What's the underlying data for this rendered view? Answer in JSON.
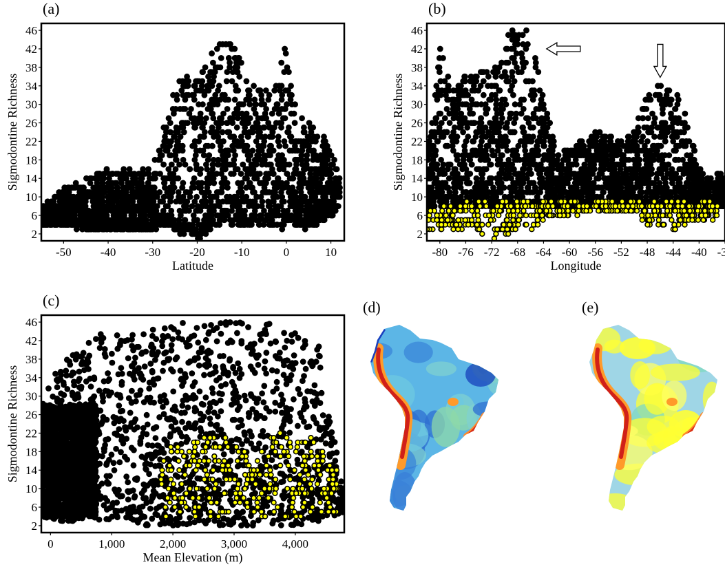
{
  "panel_labels": [
    "(a)",
    "(b)",
    "(c)",
    "(d)",
    "(e)"
  ],
  "colors": {
    "point": "#000000",
    "highlight_fill": "#ffff00",
    "arrow_fill": "#ffffff"
  },
  "chart_data": [
    {
      "id": "a",
      "type": "scatter",
      "xlabel": "Latitude",
      "ylabel": "Sigmodontine Richness",
      "xlim": [
        -55,
        13
      ],
      "ylim": [
        0.5,
        47.5
      ],
      "xticks": [
        -50,
        -40,
        -30,
        -20,
        -10,
        0,
        10
      ],
      "yticks": [
        2,
        6,
        10,
        14,
        18,
        22,
        26,
        30,
        34,
        38,
        42,
        46
      ],
      "grid": false,
      "series": [
        {
          "style": "black",
          "envelope": [
            [
              -55,
              4,
              8
            ],
            [
              -50,
              4,
              12
            ],
            [
              -45,
              3,
              14
            ],
            [
              -40,
              3,
              16
            ],
            [
              -35,
              3,
              16
            ],
            [
              -30,
              3,
              16
            ],
            [
              -27,
              4,
              28
            ],
            [
              -24,
              2,
              36
            ],
            [
              -20,
              1,
              36
            ],
            [
              -17,
              3,
              40
            ],
            [
              -15,
              4,
              46
            ],
            [
              -13,
              4,
              46
            ],
            [
              -11,
              4,
              42
            ],
            [
              -9,
              4,
              36
            ],
            [
              -6,
              4,
              34
            ],
            [
              -3,
              4,
              32
            ],
            [
              -1,
              3,
              40
            ],
            [
              0,
              5,
              44
            ],
            [
              2,
              4,
              30
            ],
            [
              5,
              3,
              26
            ],
            [
              8,
              5,
              24
            ],
            [
              10,
              6,
              20
            ],
            [
              12,
              8,
              14
            ]
          ]
        }
      ]
    },
    {
      "id": "b",
      "type": "scatter",
      "xlabel": "Longitude",
      "ylabel": "Sigmodontine Richness",
      "xlim": [
        -82,
        -36
      ],
      "ylim": [
        0.5,
        47.5
      ],
      "xticks": [
        -80,
        -76,
        -72,
        -68,
        -64,
        -60,
        -56,
        -52,
        -48,
        -44,
        -40,
        -36
      ],
      "yticks": [
        2,
        6,
        10,
        14,
        18,
        22,
        26,
        30,
        34,
        38,
        42,
        46
      ],
      "grid": false,
      "series": [
        {
          "style": "black",
          "envelope": [
            [
              -82,
              8,
              18
            ],
            [
              -80,
              8,
              44
            ],
            [
              -78,
              8,
              34
            ],
            [
              -76,
              8,
              36
            ],
            [
              -74,
              8,
              38
            ],
            [
              -72,
              8,
              36
            ],
            [
              -70,
              8,
              46
            ],
            [
              -68,
              8,
              46
            ],
            [
              -66,
              8,
              46
            ],
            [
              -64,
              8,
              32
            ],
            [
              -62,
              8,
              20
            ],
            [
              -60,
              8,
              20
            ],
            [
              -56,
              8,
              24
            ],
            [
              -52,
              8,
              22
            ],
            [
              -50,
              8,
              24
            ],
            [
              -48,
              8,
              32
            ],
            [
              -46,
              8,
              34
            ],
            [
              -44,
              8,
              34
            ],
            [
              -42,
              8,
              28
            ],
            [
              -40,
              8,
              16
            ],
            [
              -38,
              8,
              14
            ],
            [
              -36,
              8,
              16
            ]
          ]
        },
        {
          "style": "yellow",
          "envelope": [
            [
              -82,
              2,
              7
            ],
            [
              -80,
              3,
              8
            ],
            [
              -78,
              3,
              8
            ],
            [
              -76,
              3,
              9
            ],
            [
              -74,
              2,
              9
            ],
            [
              -72,
              1,
              9
            ],
            [
              -70,
              2,
              9
            ],
            [
              -68,
              3,
              9
            ],
            [
              -66,
              3,
              9
            ],
            [
              -64,
              5,
              9
            ],
            [
              -60,
              6,
              9
            ],
            [
              -56,
              7,
              9
            ],
            [
              -52,
              7,
              9
            ],
            [
              -50,
              6,
              9
            ],
            [
              -48,
              4,
              9
            ],
            [
              -46,
              3,
              9
            ],
            [
              -44,
              3,
              9
            ],
            [
              -42,
              4,
              9
            ],
            [
              -40,
              5,
              9
            ],
            [
              -38,
              5,
              9
            ],
            [
              -37,
              6,
              8
            ]
          ]
        }
      ],
      "arrows": [
        {
          "direction": "left",
          "at": [
            -63,
            42
          ]
        },
        {
          "direction": "down",
          "at": [
            -46,
            40
          ]
        }
      ]
    },
    {
      "id": "c",
      "type": "scatter",
      "xlabel": "Mean Elevation (m)",
      "ylabel": "Sigmodontine Richness",
      "xlim": [
        -150,
        4800
      ],
      "ylim": [
        0.5,
        47.5
      ],
      "xticks": [
        0,
        1000,
        2000,
        3000,
        4000
      ],
      "xticklabels": [
        "0",
        "1,000",
        "2,000",
        "3,000",
        "4,000"
      ],
      "yticks": [
        2,
        6,
        10,
        14,
        18,
        22,
        26,
        30,
        34,
        38,
        42,
        46
      ],
      "grid": false,
      "series": [
        {
          "style": "black",
          "envelope": [
            [
              -150,
              4,
              30
            ],
            [
              200,
              3,
              38
            ],
            [
              500,
              3,
              40
            ],
            [
              800,
              3,
              44
            ],
            [
              1200,
              3,
              44
            ],
            [
              1600,
              2,
              44
            ],
            [
              2000,
              2,
              46
            ],
            [
              2500,
              2,
              46
            ],
            [
              3000,
              2,
              46
            ],
            [
              3500,
              2,
              46
            ],
            [
              4000,
              2,
              44
            ],
            [
              4400,
              3,
              42
            ],
            [
              4800,
              5,
              8
            ]
          ]
        },
        {
          "style": "yellow",
          "envelope": [
            [
              1800,
              3,
              20
            ],
            [
              2200,
              4,
              20
            ],
            [
              2600,
              4,
              22
            ],
            [
              3000,
              5,
              22
            ],
            [
              3300,
              4,
              16
            ],
            [
              3600,
              4,
              22
            ],
            [
              4000,
              3,
              22
            ],
            [
              4400,
              4,
              20
            ],
            [
              4700,
              5,
              14
            ]
          ]
        }
      ]
    }
  ],
  "maps": [
    {
      "id": "d",
      "name": "richness-map-d"
    },
    {
      "id": "e",
      "name": "residual-map-e"
    }
  ]
}
